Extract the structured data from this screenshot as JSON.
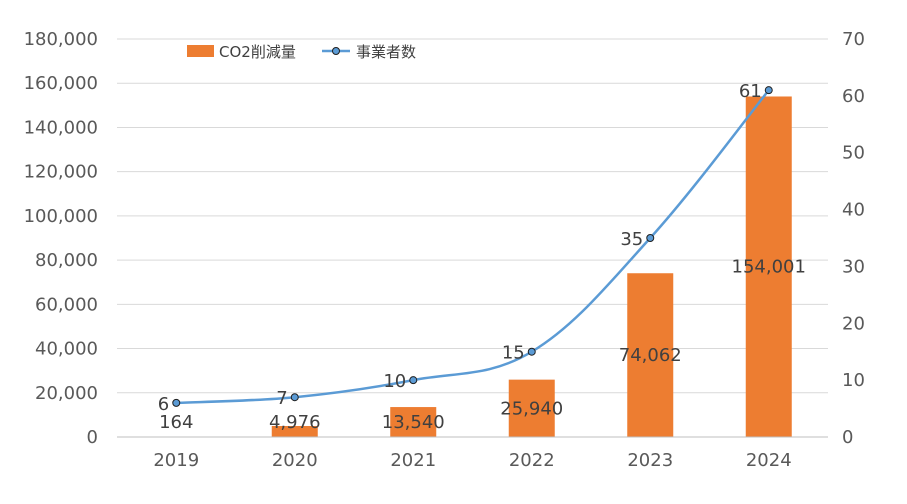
{
  "chart_data": {
    "type": "bar",
    "categories": [
      "2019",
      "2020",
      "2021",
      "2022",
      "2023",
      "2024"
    ],
    "series": [
      {
        "name": "CO2削減量",
        "type": "bar",
        "axis": "left",
        "color": "#ED7D31",
        "values": [
          164,
          4976,
          13540,
          25940,
          74062,
          154001
        ],
        "labels": [
          "164",
          "4,976",
          "13,540",
          "25,940",
          "74,062",
          "154,001"
        ]
      },
      {
        "name": "事業者数",
        "type": "line",
        "axis": "right",
        "color": "#5B9BD5",
        "marker_fill": "#5B9BD5",
        "values": [
          6,
          7,
          10,
          15,
          35,
          61
        ],
        "labels": [
          "6",
          "7",
          "10",
          "15",
          "35",
          "61"
        ]
      }
    ],
    "y_left": {
      "min": 0,
      "max": 180000,
      "ticks": [
        "0",
        "20,000",
        "40,000",
        "60,000",
        "80,000",
        "100,000",
        "120,000",
        "140,000",
        "160,000",
        "180,000"
      ]
    },
    "y_right": {
      "min": 0,
      "max": 70,
      "ticks": [
        "0",
        "10",
        "20",
        "30",
        "40",
        "50",
        "60",
        "70"
      ]
    },
    "grid": true,
    "legend_position": "top-left"
  }
}
